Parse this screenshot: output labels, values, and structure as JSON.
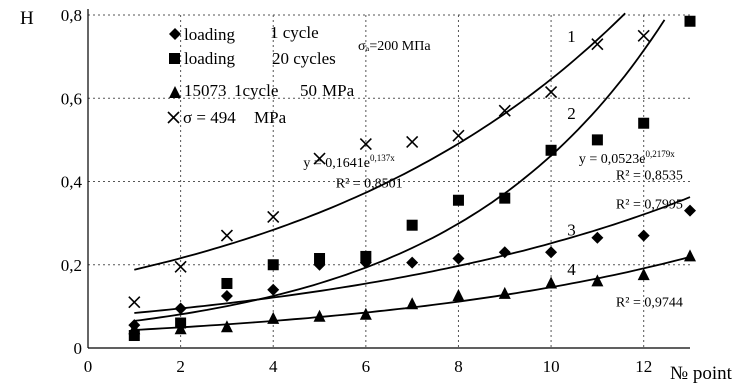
{
  "chart_data": {
    "type": "scatter",
    "ylabel": "H",
    "xlabel": "№ point",
    "xlim": [
      0,
      13
    ],
    "ylim": [
      0,
      0.8
    ],
    "x_ticks": [
      "0",
      "2",
      "4",
      "6",
      "8",
      "10",
      "12"
    ],
    "y_ticks": [
      "0",
      "0,2",
      "0,4",
      "0,6",
      "0,8"
    ],
    "grid": "dotted",
    "legend": {
      "placement": "top-left",
      "items": [
        {
          "marker": "diamond",
          "text": "loading",
          "text2": "1 cycle"
        },
        {
          "marker": "square",
          "text": "loading",
          "text2": "20 cycles"
        },
        {
          "marker": "triangle",
          "text": "15073",
          "text2": "1cycle",
          "text3": "50",
          "text4": "MPa"
        },
        {
          "marker": "cross",
          "text": "σ = 494",
          "text2": "MPa"
        }
      ],
      "extra_label": "σₐ=200 МПа"
    },
    "series": [
      {
        "marker": "cross",
        "x": [
          1,
          2,
          3,
          4,
          5,
          6,
          7,
          8,
          9,
          10,
          11,
          12
        ],
        "y": [
          0.11,
          0.195,
          0.27,
          0.315,
          0.455,
          0.49,
          0.495,
          0.51,
          0.57,
          0.615,
          0.73,
          0.75
        ]
      },
      {
        "marker": "square",
        "x": [
          1,
          2,
          3,
          4,
          5,
          6,
          7,
          8,
          9,
          10,
          11,
          12,
          13
        ],
        "y": [
          0.03,
          0.06,
          0.155,
          0.2,
          0.215,
          0.22,
          0.295,
          0.355,
          0.36,
          0.475,
          0.5,
          0.54,
          0.785
        ]
      },
      {
        "marker": "diamond",
        "x": [
          1,
          2,
          3,
          4,
          5,
          6,
          7,
          8,
          9,
          10,
          11,
          12,
          13
        ],
        "y": [
          0.055,
          0.095,
          0.125,
          0.14,
          0.2,
          0.205,
          0.205,
          0.215,
          0.23,
          0.23,
          0.265,
          0.27,
          0.33
        ]
      },
      {
        "marker": "triangle",
        "x": [
          1,
          2,
          3,
          4,
          5,
          6,
          7,
          8,
          9,
          10,
          11,
          12,
          13
        ],
        "y": [
          0.045,
          0.045,
          0.05,
          0.07,
          0.075,
          0.08,
          0.105,
          0.125,
          0.13,
          0.155,
          0.16,
          0.175,
          0.22
        ]
      }
    ],
    "trendlines": [
      {
        "id": "1",
        "a": 0.1641,
        "b": 0.137,
        "x_from": 1,
        "x_to": 11.6
      },
      {
        "id": "2",
        "a": 0.0523,
        "b": 0.2179,
        "x_from": 1,
        "x_to": 12.45
      },
      {
        "id": "3",
        "a": 0.0745,
        "b": 0.1217,
        "x_from": 1,
        "x_to": 13
      },
      {
        "id": "4",
        "a": 0.0379,
        "b": 0.1349,
        "x_from": 1,
        "x_to": 13
      }
    ],
    "curve_labels": [
      {
        "text": "1",
        "x": 10.35,
        "y": 0.735
      },
      {
        "text": "2",
        "x": 10.35,
        "y": 0.55
      },
      {
        "text": "3",
        "x": 10.35,
        "y": 0.27
      },
      {
        "text": "4",
        "x": 10.35,
        "y": 0.175
      }
    ],
    "annotations": [
      {
        "id": "eq1",
        "base": "y = 0,1641e",
        "exp": "0,137x",
        "x": 4.65,
        "y": 0.435
      },
      {
        "id": "r1",
        "text": "R² = 0,8501",
        "x": 5.35,
        "y": 0.385
      },
      {
        "id": "eq2",
        "base": "y = 0,0523e",
        "exp": "0,2179x",
        "x": 10.6,
        "y": 0.445
      },
      {
        "id": "r2",
        "text": "R² = 0,8535",
        "x": 11.4,
        "y": 0.405
      },
      {
        "id": "r3",
        "text": "R² = 0,7995",
        "x": 11.4,
        "y": 0.335
      },
      {
        "id": "r4",
        "text": "R² = 0,9744",
        "x": 11.4,
        "y": 0.1
      }
    ]
  }
}
